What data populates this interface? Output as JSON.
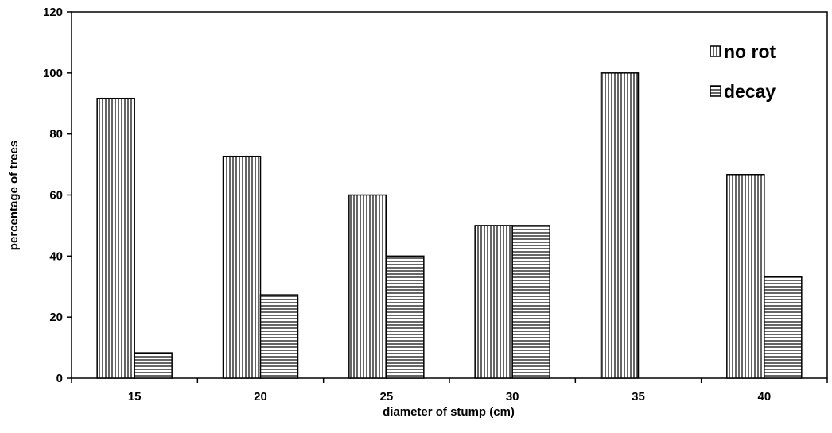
{
  "chart_data": {
    "type": "bar",
    "categories": [
      "15",
      "20",
      "25",
      "30",
      "35",
      "40"
    ],
    "series": [
      {
        "name": "no rot",
        "values": [
          91.7,
          72.7,
          60,
          50,
          100,
          66.7
        ],
        "pattern": "vertical-lines"
      },
      {
        "name": "decay",
        "values": [
          8.3,
          27.3,
          40,
          50,
          0,
          33.3
        ],
        "pattern": "horizontal-lines"
      }
    ],
    "xlabel": "diameter of stump (cm)",
    "ylabel": "percentage of trees",
    "ylim": [
      0,
      120
    ],
    "yticks": [
      "0",
      "20",
      "40",
      "60",
      "80",
      "100",
      "120"
    ],
    "grid": false,
    "legend_position": "top-right",
    "colors": {
      "bar_fill": "#ffffff",
      "stroke": "#000000"
    }
  }
}
